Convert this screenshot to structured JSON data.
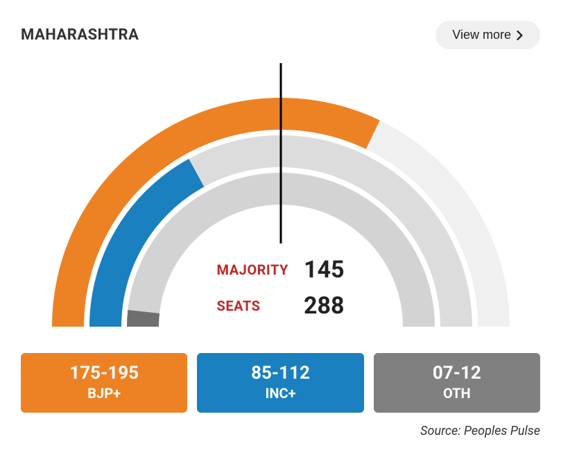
{
  "header": {
    "title": "MAHARASHTRA",
    "view_more_label": "View more"
  },
  "chart": {
    "type": "semi-donut-gauge",
    "total_seats": 288,
    "majority_mark": 145,
    "background_color": "#ffffff",
    "outer_radius": 330,
    "ring_thickness": 46,
    "ring_gap": 8,
    "majority_line_color": "#000000",
    "rings": [
      {
        "party_key": "bjp",
        "value": 185,
        "display_range": "175-195",
        "color": "#ed8225",
        "track_color": "#f0f0f0"
      },
      {
        "party_key": "inc",
        "value": 98,
        "display_range": "85-112",
        "color": "#1a80bf",
        "track_color": "#dcdcdc"
      },
      {
        "party_key": "oth",
        "value": 10,
        "display_range": "07-12",
        "color": "#6f6f6f",
        "track_color": "#d3d3d3"
      }
    ],
    "center_labels": {
      "majority_label": "MAJORITY",
      "majority_value": "145",
      "seats_label": "SEATS",
      "seats_value": "288",
      "label_color": "#c02727",
      "value_color": "#222222",
      "label_fontsize": 20,
      "value_fontsize": 34
    }
  },
  "legend": {
    "cards": [
      {
        "range": "175-195",
        "party": "BJP+",
        "bg_color": "#ed8225",
        "text_color": "#ffffff"
      },
      {
        "range": "85-112",
        "party": "INC+",
        "bg_color": "#1a80bf",
        "text_color": "#ffffff"
      },
      {
        "range": "07-12",
        "party": "OTH",
        "bg_color": "#808080",
        "text_color": "#ffffff"
      }
    ]
  },
  "source": {
    "text": "Source: Peoples Pulse"
  }
}
